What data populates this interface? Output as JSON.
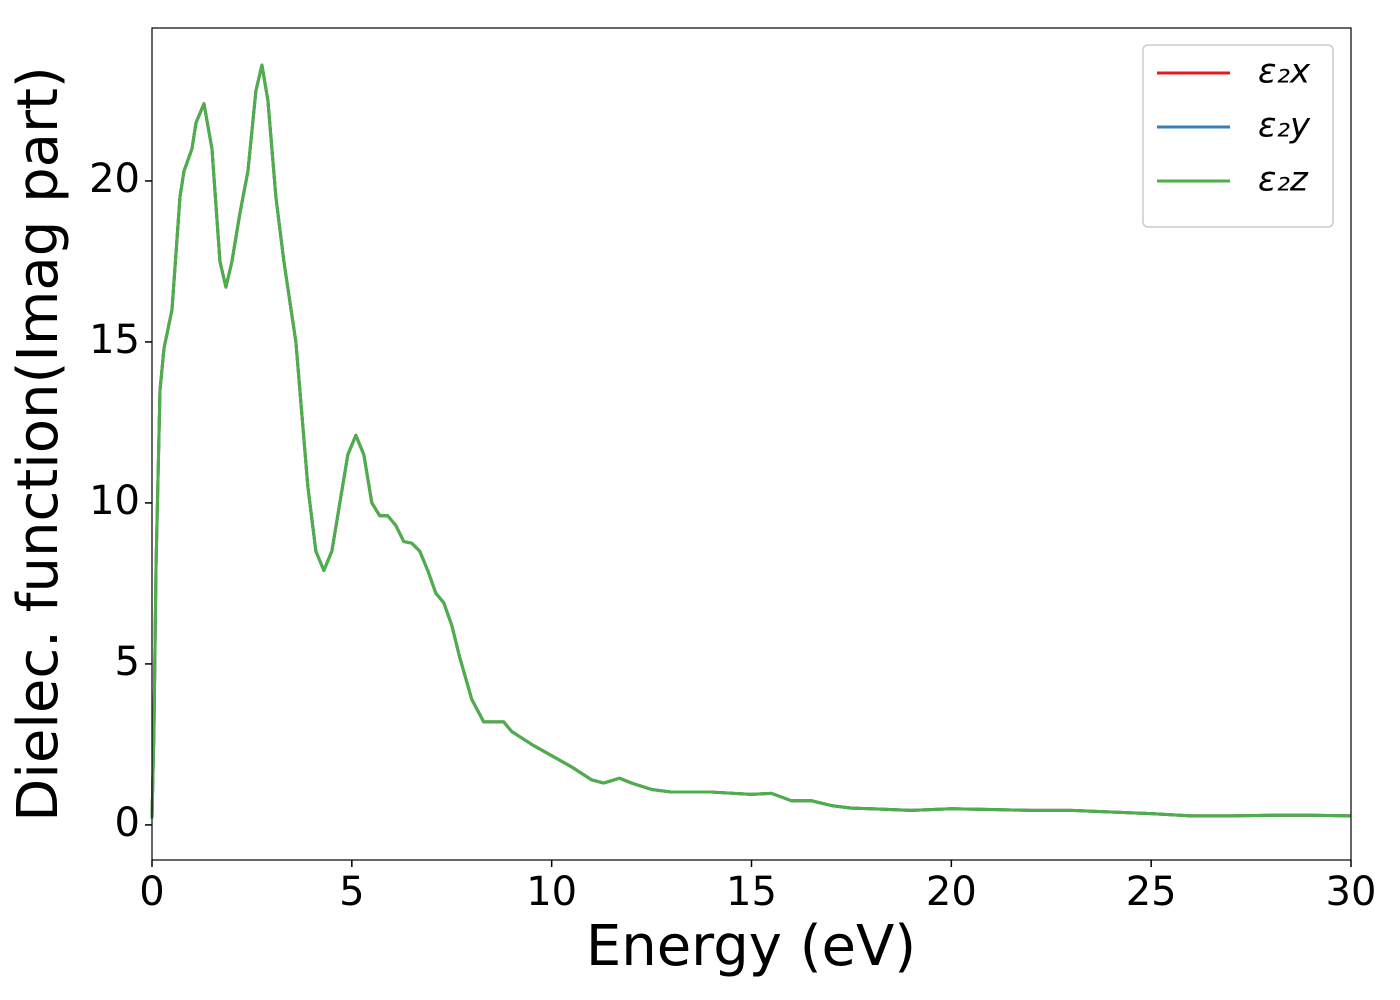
{
  "chart_data": {
    "type": "line",
    "xlabel": "Energy (eV)",
    "ylabel": "Dielec. function(Imag part)",
    "x": [
      0,
      0.05,
      0.1,
      0.2,
      0.3,
      0.5,
      0.7,
      0.8,
      1.0,
      1.1,
      1.3,
      1.5,
      1.7,
      1.85,
      2.0,
      2.2,
      2.4,
      2.6,
      2.75,
      2.9,
      3.1,
      3.3,
      3.6,
      3.9,
      4.1,
      4.3,
      4.5,
      4.7,
      4.9,
      5.1,
      5.3,
      5.5,
      5.7,
      5.9,
      6.1,
      6.3,
      6.5,
      6.7,
      6.9,
      7.1,
      7.3,
      7.5,
      7.7,
      8.0,
      8.3,
      8.5,
      8.8,
      9.0,
      9.5,
      10,
      10.5,
      11,
      11.3,
      11.7,
      12,
      12.5,
      13,
      14,
      15,
      15.5,
      16,
      16.5,
      17,
      17.5,
      18,
      19,
      20,
      21,
      22,
      23,
      24,
      25,
      26,
      27,
      28,
      29,
      30
    ],
    "series": [
      {
        "name": "ε₂x",
        "color": "#e41a1c",
        "values": [
          0.2,
          3,
          8,
          13.5,
          14.8,
          16,
          19.5,
          20.3,
          21,
          21.8,
          22.4,
          21,
          17.5,
          16.7,
          17.5,
          19,
          20.3,
          22.8,
          23.6,
          22.5,
          19.5,
          17.5,
          15,
          10.5,
          8.5,
          7.9,
          8.5,
          10,
          11.5,
          12.1,
          11.5,
          10,
          9.6,
          9.6,
          9.3,
          8.8,
          8.75,
          8.5,
          7.9,
          7.2,
          6.9,
          6.2,
          5.2,
          3.9,
          3.2,
          3.2,
          3.2,
          2.9,
          2.5,
          2.15,
          1.8,
          1.4,
          1.3,
          1.45,
          1.3,
          1.1,
          1.02,
          1.02,
          0.95,
          0.98,
          0.75,
          0.75,
          0.6,
          0.52,
          0.5,
          0.45,
          0.5,
          0.48,
          0.45,
          0.45,
          0.4,
          0.35,
          0.28,
          0.28,
          0.3,
          0.3,
          0.28
        ]
      },
      {
        "name": "ε₂y",
        "color": "#377eb8",
        "values": [
          0.2,
          3,
          8,
          13.5,
          14.8,
          16,
          19.5,
          20.3,
          21,
          21.8,
          22.4,
          21,
          17.5,
          16.7,
          17.5,
          19,
          20.3,
          22.8,
          23.6,
          22.5,
          19.5,
          17.5,
          15,
          10.5,
          8.5,
          7.9,
          8.5,
          10,
          11.5,
          12.1,
          11.5,
          10,
          9.6,
          9.6,
          9.3,
          8.8,
          8.75,
          8.5,
          7.9,
          7.2,
          6.9,
          6.2,
          5.2,
          3.9,
          3.2,
          3.2,
          3.2,
          2.9,
          2.5,
          2.15,
          1.8,
          1.4,
          1.3,
          1.45,
          1.3,
          1.1,
          1.02,
          1.02,
          0.95,
          0.98,
          0.75,
          0.75,
          0.6,
          0.52,
          0.5,
          0.45,
          0.5,
          0.48,
          0.45,
          0.45,
          0.4,
          0.35,
          0.28,
          0.28,
          0.3,
          0.3,
          0.28
        ]
      },
      {
        "name": "ε₂z",
        "color": "#4daf4a",
        "values": [
          0.2,
          3,
          8,
          13.5,
          14.8,
          16,
          19.5,
          20.3,
          21,
          21.8,
          22.4,
          21,
          17.5,
          16.7,
          17.5,
          19,
          20.3,
          22.8,
          23.6,
          22.5,
          19.5,
          17.5,
          15,
          10.5,
          8.5,
          7.9,
          8.5,
          10,
          11.5,
          12.1,
          11.5,
          10,
          9.6,
          9.6,
          9.3,
          8.8,
          8.75,
          8.5,
          7.9,
          7.2,
          6.9,
          6.2,
          5.2,
          3.9,
          3.2,
          3.2,
          3.2,
          2.9,
          2.5,
          2.15,
          1.8,
          1.4,
          1.3,
          1.45,
          1.3,
          1.1,
          1.02,
          1.02,
          0.95,
          0.98,
          0.75,
          0.75,
          0.6,
          0.52,
          0.5,
          0.45,
          0.5,
          0.48,
          0.45,
          0.45,
          0.4,
          0.35,
          0.28,
          0.28,
          0.3,
          0.3,
          0.28
        ]
      }
    ],
    "xlim": [
      0,
      30
    ],
    "xticks": [
      0,
      5,
      10,
      15,
      20,
      25,
      30
    ],
    "ylim": [
      -1.09,
      24.75
    ],
    "yticks": [
      0,
      5,
      10,
      15,
      20
    ],
    "grid": false,
    "legend": "upper right"
  }
}
